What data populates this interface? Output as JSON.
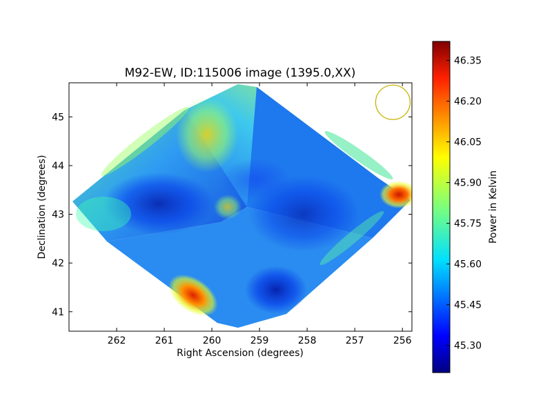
{
  "chart_data": {
    "type": "heatmap",
    "title": "M92-EW, ID:115006 image (1395.0,XX)",
    "xlabel": "Right Ascension (degrees)",
    "ylabel": "Declination (degrees)",
    "xlim": [
      263.0,
      255.8
    ],
    "ylim": [
      40.6,
      45.7
    ],
    "x_ticks": [
      "262",
      "261",
      "260",
      "259",
      "258",
      "257",
      "256"
    ],
    "x_tick_values": [
      262,
      261,
      260,
      259,
      258,
      257,
      256
    ],
    "y_ticks": [
      "41",
      "42",
      "43",
      "44",
      "45"
    ],
    "y_tick_values": [
      41,
      42,
      43,
      44,
      45
    ],
    "colorbar": {
      "label": "Power in Kelvin",
      "range": [
        45.2,
        46.42
      ],
      "ticks": [
        "45.30",
        "45.45",
        "45.60",
        "45.75",
        "45.90",
        "46.05",
        "46.20",
        "46.35"
      ],
      "tick_values": [
        45.3,
        45.45,
        45.6,
        45.75,
        45.9,
        46.05,
        46.2,
        46.35
      ],
      "colormap": "jet"
    },
    "beam_circle": {
      "ra": 256.2,
      "dec": 45.3,
      "color": "#c8b400"
    },
    "grid": false
  }
}
